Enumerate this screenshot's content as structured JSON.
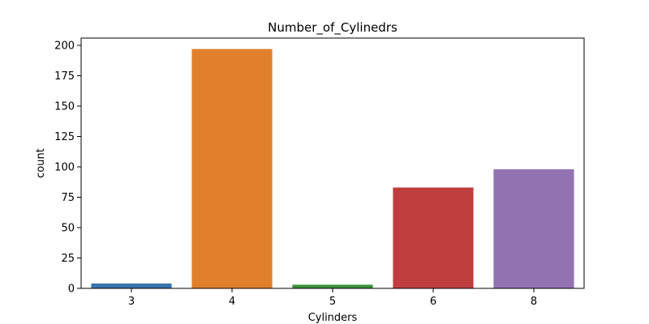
{
  "chart_data": {
    "type": "bar",
    "title": "Number_of_Cylinedrs",
    "xlabel": "Cylinders",
    "ylabel": "count",
    "categories": [
      "3",
      "4",
      "5",
      "6",
      "8"
    ],
    "values": [
      4,
      197,
      3,
      83,
      98
    ],
    "colors": [
      "#3a75af",
      "#e0802d",
      "#3a923a",
      "#c03d3e",
      "#9372b2"
    ],
    "ylim": [
      0,
      206
    ],
    "yticks": [
      0,
      25,
      50,
      75,
      100,
      125,
      150,
      175,
      200
    ],
    "grid": false,
    "legend": "none"
  }
}
